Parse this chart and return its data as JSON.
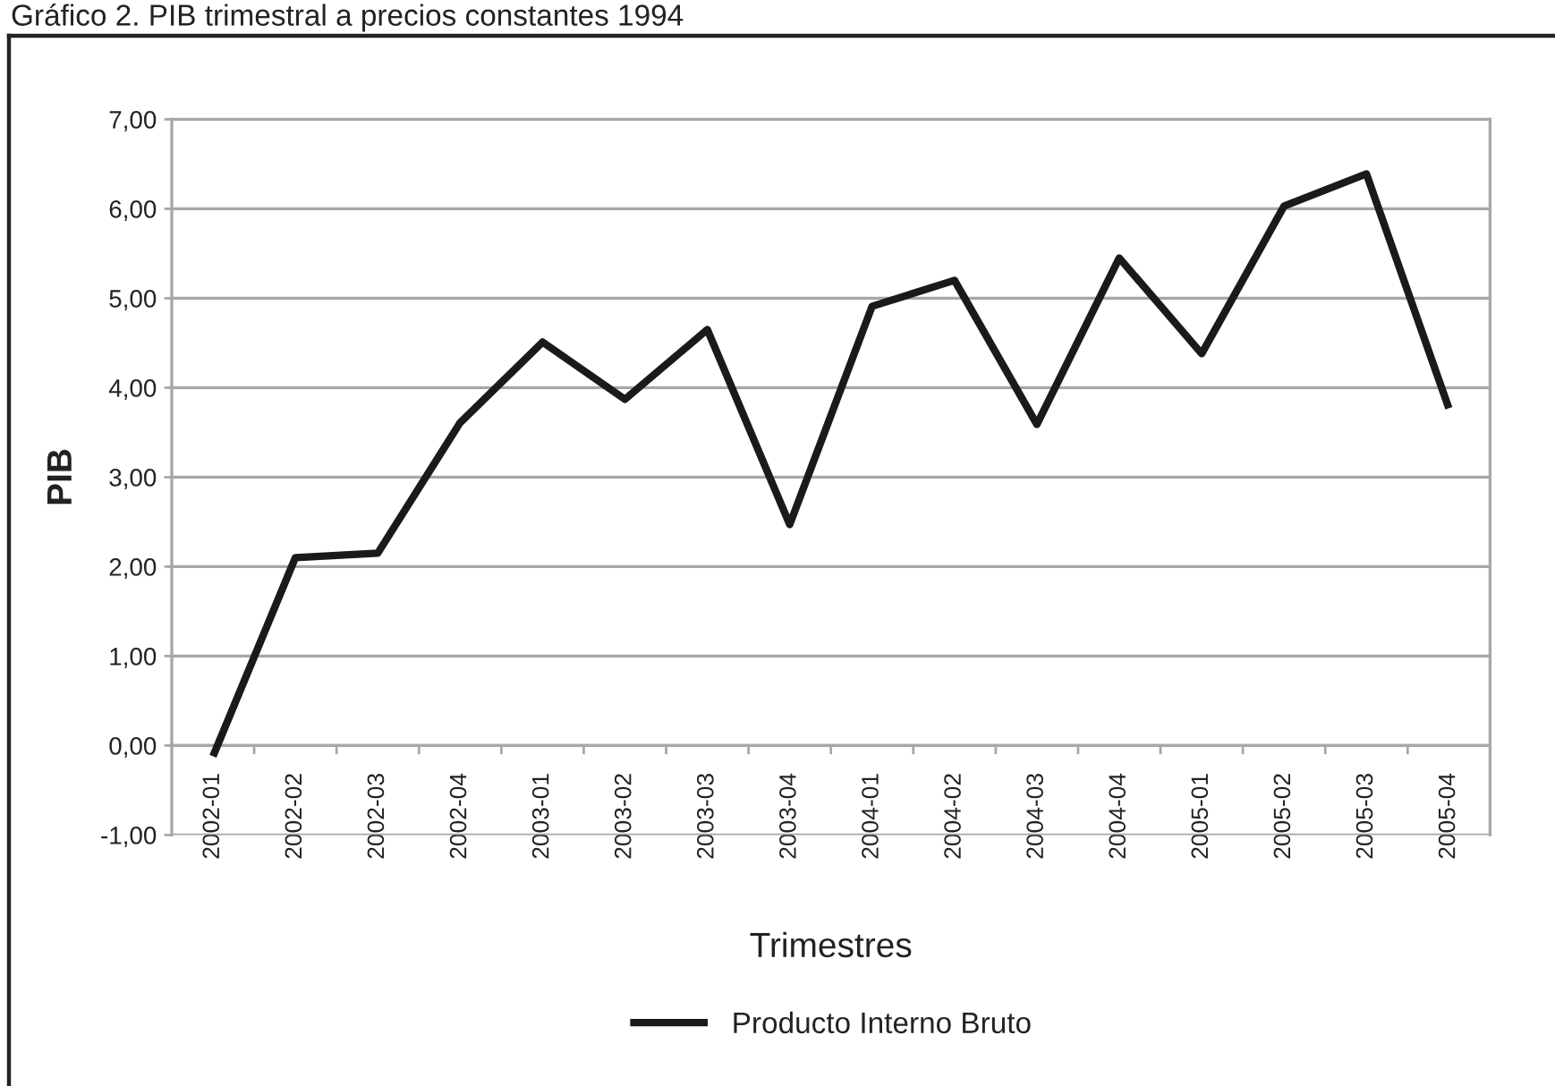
{
  "chart_data": {
    "type": "line",
    "title": "Gráfico 2. PIB trimestral a precios constantes 1994",
    "xlabel": "Trimestres",
    "ylabel": "PIB",
    "categories": [
      "2002-01",
      "2002-02",
      "2002-03",
      "2002-04",
      "2003-01",
      "2003-02",
      "2003-03",
      "2003-04",
      "2004-01",
      "2004-02",
      "2004-03",
      "2004-04",
      "2005-01",
      "2005-02",
      "2005-03",
      "2005-04"
    ],
    "series": [
      {
        "name": "Producto Interno Bruto",
        "color": "#1a1a1a",
        "values": [
          -0.12,
          2.1,
          2.15,
          3.61,
          4.51,
          3.87,
          4.65,
          2.47,
          4.91,
          5.2,
          3.59,
          5.45,
          4.38,
          6.03,
          6.39,
          3.77
        ]
      }
    ],
    "ylim": [
      -1,
      7
    ],
    "yticks": [
      {
        "value": -1,
        "label": "-1,00"
      },
      {
        "value": 0,
        "label": "0,00"
      },
      {
        "value": 1,
        "label": "1,00"
      },
      {
        "value": 2,
        "label": "2,00"
      },
      {
        "value": 3,
        "label": "3,00"
      },
      {
        "value": 4,
        "label": "4,00"
      },
      {
        "value": 5,
        "label": "5,00"
      },
      {
        "value": 6,
        "label": "6,00"
      },
      {
        "value": 7,
        "label": "7,00"
      }
    ],
    "grid": "y",
    "legend": "bottom",
    "line_style": "solid"
  }
}
